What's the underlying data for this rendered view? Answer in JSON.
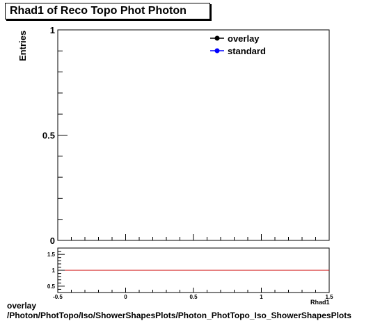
{
  "title": "Rhad1 of Reco Topo Phot Photon",
  "footer": {
    "line1": "overlay",
    "line2": "/Photon/PhotTopo/Iso/ShowerShapesPlots/Photon_PhotTopo_Iso_ShowerShapesPlots"
  },
  "colors": {
    "overlay": "#000000",
    "standard": "#0000ff",
    "ratio_line": "#cc0000"
  },
  "chart_data": [
    {
      "type": "line",
      "xlim": [
        -0.5,
        1.5
      ],
      "ylim": [
        0,
        1
      ],
      "ylabel": "Entries",
      "xlabel": "",
      "grid": false,
      "legend_position": "top-right",
      "y_tick_labels": [
        "0",
        "0.5",
        "1"
      ],
      "series": [
        {
          "name": "overlay",
          "x": [],
          "y": []
        },
        {
          "name": "standard",
          "x": [],
          "y": []
        }
      ]
    },
    {
      "type": "line",
      "xlim": [
        -0.5,
        1.5
      ],
      "ylim": [
        0.3,
        1.7
      ],
      "grid": false,
      "x_tick_labels": [
        "-0.5",
        "0",
        "0.5",
        "1",
        "1.5"
      ],
      "y_tick_labels": [
        "0.5",
        "1",
        "1.5"
      ],
      "xlabel_visible": "Rhad1",
      "reference_line": 1
    }
  ]
}
